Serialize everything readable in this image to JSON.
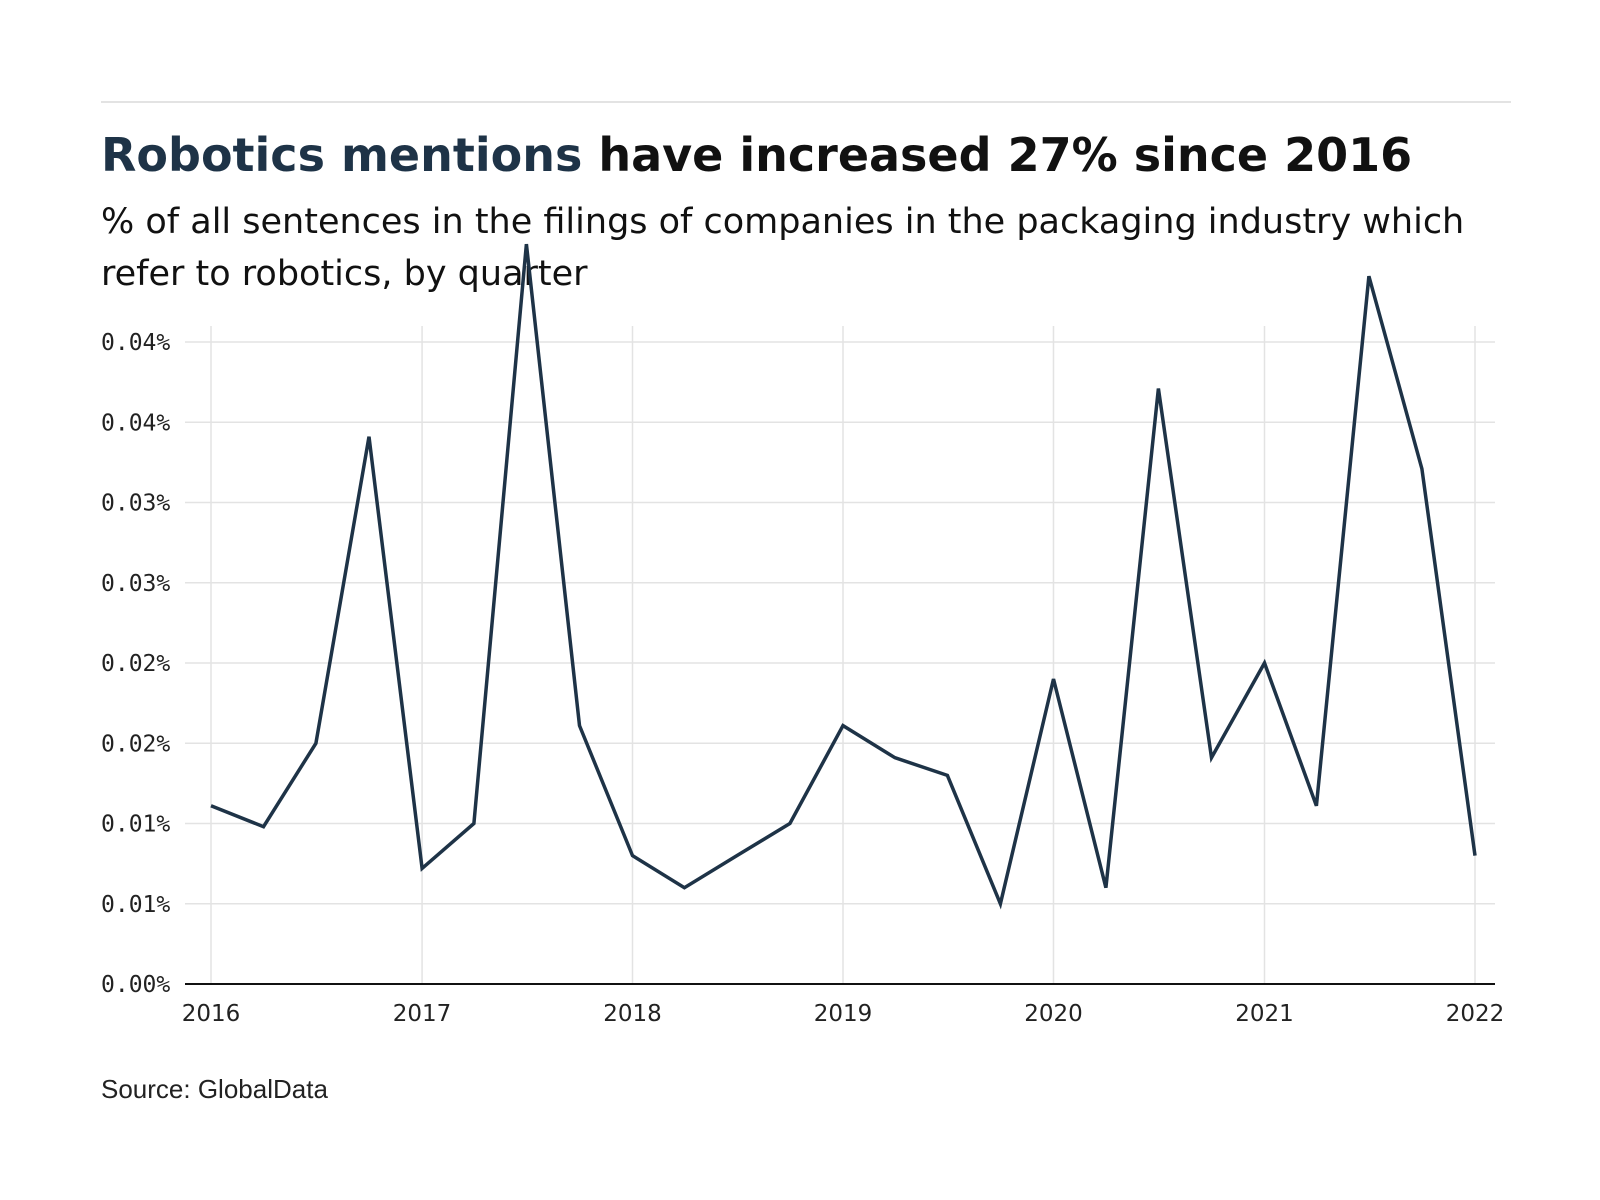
{
  "header": {
    "title_highlight": "Robotics mentions",
    "title_rest": " have increased 27% since 2016",
    "subtitle": "% of all sentences in the filings of companies in the packaging industry which refer to robotics, by quarter"
  },
  "footer": {
    "source": "Source: GlobalData"
  },
  "colors": {
    "line": "#1e3347",
    "grid": "#e3e3e3",
    "axis": "#111111",
    "accent": "#1e3347"
  },
  "chart_data": {
    "type": "line",
    "title": "Robotics mentions have increased 27% since 2016",
    "subtitle": "% of all sentences in the filings of companies in the packaging industry which refer to robotics, by quarter",
    "xlabel": "",
    "ylabel": "",
    "x": [
      "2016-01-01",
      "2016-04-01",
      "2016-07-01",
      "2016-10-01",
      "2017-01-01",
      "2017-04-01",
      "2017-07-01",
      "2017-10-01",
      "2018-01-01",
      "2018-04-01",
      "2018-07-01",
      "2018-10-01",
      "2019-01-01",
      "2019-04-01",
      "2019-07-01",
      "2019-10-01",
      "2020-01-01",
      "2020-04-01",
      "2020-07-01",
      "2020-10-01",
      "2021-01-01",
      "2021-04-01",
      "2021-07-01",
      "2021-10-01",
      "2022-01-01"
    ],
    "series": [
      {
        "values": [
          0.0111,
          0.0098,
          0.015,
          0.0341,
          0.0072,
          0.01,
          0.0461,
          0.0161,
          0.008,
          0.006,
          0.008,
          0.01,
          0.0161,
          0.0141,
          0.013,
          0.005,
          0.019,
          0.006,
          0.0371,
          0.0141,
          0.02,
          0.0111,
          0.0441,
          0.0321,
          0.008
        ]
      }
    ],
    "ylim": [
      0,
      0.04
    ],
    "y_ticks": [
      0,
      0.005,
      0.01,
      0.015,
      0.02,
      0.025,
      0.03,
      0.035,
      0.04
    ],
    "y_tick_labels": [
      "0.00%",
      "0.01%",
      "0.01%",
      "0.02%",
      "0.02%",
      "0.03%",
      "0.03%",
      "0.04%",
      "0.04%"
    ],
    "x_ticks": [
      "2016-01-01",
      "2017-01-01",
      "2018-01-01",
      "2019-01-01",
      "2020-01-01",
      "2021-01-01",
      "2022-01-01"
    ],
    "x_tick_labels": [
      "2016",
      "2017",
      "2018",
      "2019",
      "2020",
      "2021",
      "2022"
    ],
    "grid": true,
    "legend": "none"
  }
}
